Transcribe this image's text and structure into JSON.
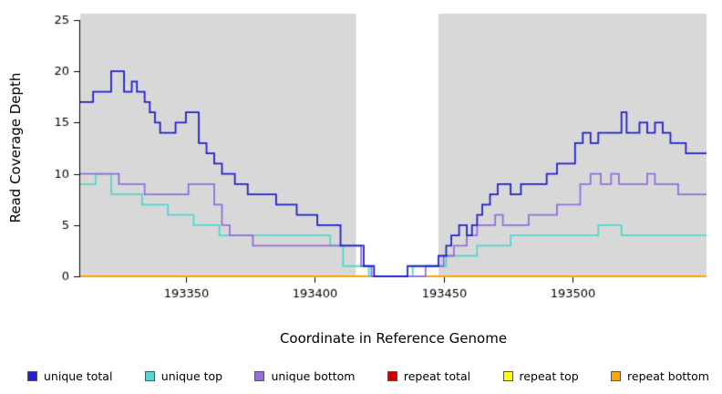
{
  "chart_data": {
    "type": "line",
    "step": true,
    "title": "",
    "xlabel": "Coordinate in Reference Genome",
    "ylabel": "Read Coverage Depth",
    "xlim": [
      193309,
      193552
    ],
    "ylim": [
      0,
      25
    ],
    "x_ticks": [
      193350,
      193400,
      193450,
      193500
    ],
    "y_ticks": [
      0,
      5,
      10,
      15,
      20,
      25
    ],
    "plot_bg_color": "#d8d8d8",
    "axis_color": "#000000",
    "gap_region": {
      "x_start": 193416,
      "x_end": 193448,
      "color": "#ffffff"
    },
    "series": [
      {
        "name": "repeat total",
        "color": "#cc0000",
        "points": [
          [
            193309,
            0
          ],
          [
            193552,
            0
          ]
        ]
      },
      {
        "name": "repeat top",
        "color": "#ffff00",
        "points": [
          [
            193309,
            0
          ],
          [
            193552,
            0
          ]
        ]
      },
      {
        "name": "repeat bottom",
        "color": "#ffa500",
        "points": [
          [
            193309,
            0
          ],
          [
            193552,
            0
          ]
        ]
      },
      {
        "name": "unique top",
        "color": "#55d6d0",
        "points": [
          [
            193309,
            9
          ],
          [
            193315,
            10
          ],
          [
            193321,
            8
          ],
          [
            193333,
            7
          ],
          [
            193343,
            6
          ],
          [
            193353,
            5
          ],
          [
            193363,
            4
          ],
          [
            193406,
            3
          ],
          [
            193411,
            1
          ],
          [
            193421,
            0
          ],
          [
            193438,
            1
          ],
          [
            193451,
            2
          ],
          [
            193463,
            3
          ],
          [
            193476,
            4
          ],
          [
            193510,
            5
          ],
          [
            193519,
            4
          ],
          [
            193552,
            4
          ]
        ]
      },
      {
        "name": "unique bottom",
        "color": "#9370db",
        "points": [
          [
            193309,
            10
          ],
          [
            193324,
            9
          ],
          [
            193334,
            8
          ],
          [
            193351,
            9
          ],
          [
            193361,
            7
          ],
          [
            193364,
            5
          ],
          [
            193367,
            4
          ],
          [
            193376,
            3
          ],
          [
            193418,
            1
          ],
          [
            193422,
            0
          ],
          [
            193443,
            1
          ],
          [
            193450,
            2
          ],
          [
            193454,
            3
          ],
          [
            193459,
            4
          ],
          [
            193463,
            5
          ],
          [
            193470,
            6
          ],
          [
            193473,
            5
          ],
          [
            193483,
            6
          ],
          [
            193494,
            7
          ],
          [
            193503,
            9
          ],
          [
            193507,
            10
          ],
          [
            193511,
            9
          ],
          [
            193515,
            10
          ],
          [
            193518,
            9
          ],
          [
            193529,
            10
          ],
          [
            193532,
            9
          ],
          [
            193541,
            8
          ],
          [
            193552,
            8
          ]
        ]
      },
      {
        "name": "unique total",
        "color": "#2222cc",
        "points": [
          [
            193309,
            17
          ],
          [
            193314,
            18
          ],
          [
            193321,
            20
          ],
          [
            193326,
            18
          ],
          [
            193329,
            19
          ],
          [
            193331,
            18
          ],
          [
            193334,
            17
          ],
          [
            193336,
            16
          ],
          [
            193338,
            15
          ],
          [
            193340,
            14
          ],
          [
            193346,
            15
          ],
          [
            193350,
            16
          ],
          [
            193355,
            13
          ],
          [
            193358,
            12
          ],
          [
            193361,
            11
          ],
          [
            193364,
            10
          ],
          [
            193369,
            9
          ],
          [
            193374,
            8
          ],
          [
            193385,
            7
          ],
          [
            193393,
            6
          ],
          [
            193401,
            5
          ],
          [
            193410,
            3
          ],
          [
            193419,
            1
          ],
          [
            193423,
            0
          ],
          [
            193436,
            1
          ],
          [
            193448,
            2
          ],
          [
            193451,
            3
          ],
          [
            193453,
            4
          ],
          [
            193456,
            5
          ],
          [
            193459,
            4
          ],
          [
            193461,
            5
          ],
          [
            193463,
            6
          ],
          [
            193465,
            7
          ],
          [
            193468,
            8
          ],
          [
            193471,
            9
          ],
          [
            193476,
            8
          ],
          [
            193480,
            9
          ],
          [
            193490,
            10
          ],
          [
            193494,
            11
          ],
          [
            193501,
            13
          ],
          [
            193504,
            14
          ],
          [
            193507,
            13
          ],
          [
            193510,
            14
          ],
          [
            193517,
            14
          ],
          [
            193519,
            16
          ],
          [
            193521,
            14
          ],
          [
            193526,
            15
          ],
          [
            193529,
            14
          ],
          [
            193532,
            15
          ],
          [
            193535,
            14
          ],
          [
            193538,
            13
          ],
          [
            193544,
            12
          ],
          [
            193552,
            12
          ]
        ]
      }
    ],
    "legend": [
      {
        "label": "unique total",
        "color": "#2222cc"
      },
      {
        "label": "unique top",
        "color": "#55d6d0"
      },
      {
        "label": "unique bottom",
        "color": "#9370db"
      },
      {
        "label": "repeat total",
        "color": "#cc0000"
      },
      {
        "label": "repeat top",
        "color": "#ffff00"
      },
      {
        "label": "repeat bottom",
        "color": "#ffa500"
      }
    ],
    "legend_position": "bottom",
    "grid": false
  }
}
